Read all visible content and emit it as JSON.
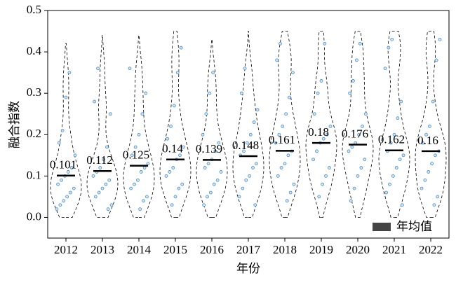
{
  "chart_data": {
    "type": "violin",
    "xlabel": "年份",
    "ylabel": "融合指数",
    "categories": [
      "2012",
      "2013",
      "2014",
      "2015",
      "2016",
      "2017",
      "2018",
      "2019",
      "2020",
      "2021",
      "2022"
    ],
    "values": [
      0.101,
      0.112,
      0.125,
      0.14,
      0.139,
      0.148,
      0.161,
      0.18,
      0.176,
      0.162,
      0.16
    ],
    "ranges": [
      [
        0,
        0.42
      ],
      [
        0,
        0.44
      ],
      [
        0,
        0.44
      ],
      [
        0,
        0.45
      ],
      [
        0,
        0.43
      ],
      [
        0,
        0.45
      ],
      [
        0,
        0.45
      ],
      [
        0,
        0.45
      ],
      [
        0,
        0.45
      ],
      [
        0,
        0.45
      ],
      [
        0,
        0.45
      ]
    ],
    "points": [
      [
        0.02,
        0.03,
        0.04,
        0.05,
        0.06,
        0.07,
        0.08,
        0.09,
        0.1,
        0.11,
        0.12,
        0.15,
        0.18,
        0.21,
        0.29,
        0.35
      ],
      [
        0.02,
        0.03,
        0.05,
        0.06,
        0.07,
        0.08,
        0.09,
        0.1,
        0.11,
        0.12,
        0.14,
        0.17,
        0.25,
        0.28,
        0.36
      ],
      [
        0.02,
        0.04,
        0.05,
        0.07,
        0.08,
        0.09,
        0.11,
        0.12,
        0.13,
        0.15,
        0.17,
        0.2,
        0.25,
        0.3,
        0.36
      ],
      [
        0.03,
        0.05,
        0.07,
        0.08,
        0.1,
        0.11,
        0.12,
        0.14,
        0.15,
        0.17,
        0.19,
        0.22,
        0.27,
        0.35,
        0.41
      ],
      [
        0.03,
        0.05,
        0.06,
        0.08,
        0.09,
        0.11,
        0.12,
        0.13,
        0.14,
        0.16,
        0.18,
        0.2,
        0.25,
        0.3,
        0.35
      ],
      [
        0.03,
        0.05,
        0.07,
        0.09,
        0.1,
        0.12,
        0.13,
        0.15,
        0.16,
        0.18,
        0.2,
        0.23,
        0.26,
        0.3,
        0.36
      ],
      [
        0.04,
        0.06,
        0.08,
        0.1,
        0.12,
        0.13,
        0.15,
        0.16,
        0.18,
        0.2,
        0.22,
        0.25,
        0.29,
        0.35,
        0.38,
        0.42
      ],
      [
        0.05,
        0.08,
        0.1,
        0.12,
        0.14,
        0.16,
        0.18,
        0.19,
        0.2,
        0.22,
        0.25,
        0.3,
        0.33,
        0.42
      ],
      [
        0.04,
        0.07,
        0.1,
        0.12,
        0.14,
        0.16,
        0.17,
        0.18,
        0.2,
        0.22,
        0.25,
        0.3,
        0.33,
        0.38,
        0.42
      ],
      [
        0.03,
        0.06,
        0.08,
        0.1,
        0.12,
        0.14,
        0.15,
        0.16,
        0.18,
        0.2,
        0.24,
        0.28,
        0.36,
        0.41,
        0.43
      ],
      [
        0.03,
        0.05,
        0.07,
        0.09,
        0.11,
        0.13,
        0.15,
        0.16,
        0.18,
        0.2,
        0.22,
        0.28,
        0.38,
        0.43
      ]
    ],
    "point_color": "#4a8fc7",
    "mean_color": "#000000",
    "legend": "年均值",
    "legend_loc": "lower right",
    "ylim": [
      -0.05,
      0.5
    ],
    "yticks": [
      {
        "value": 0,
        "label": "0.0"
      },
      0.1,
      0.2,
      0.3,
      0.4,
      0.5
    ]
  }
}
